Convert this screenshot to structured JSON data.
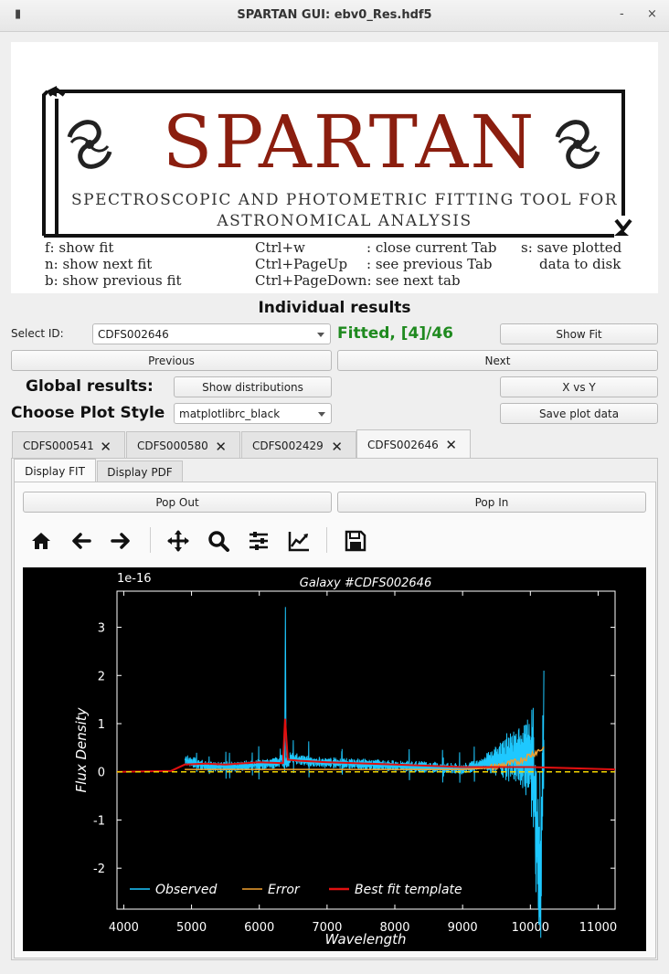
{
  "window": {
    "title": "SPARTAN GUI: ebv0_Res.hdf5",
    "minimize": "-",
    "close": "×",
    "menu": "▮"
  },
  "logo": {
    "title": "SPARTAN",
    "subtitle_line1": "SPECTROSCOPIC AND PHOTOMETRIC FITTING TOOL FOR",
    "subtitle_line2": "ASTRONOMICAL ANALYSIS"
  },
  "shortcuts": {
    "col1": [
      "f:  show fit",
      "n: show next fit",
      "b: show previous fit"
    ],
    "col2_keys": [
      "Ctrl+w",
      "Ctrl+PageUp",
      "Ctrl+PageDown:"
    ],
    "col2_desc": [
      ": close current Tab",
      ": see previous Tab",
      "see next tab"
    ],
    "col3": [
      "s: save plotted",
      "data to disk"
    ]
  },
  "individual": {
    "heading": "Individual results",
    "select_label": "Select ID:",
    "select_value": "CDFS002646",
    "status": "Fitted, [4]/46",
    "show_fit": "Show Fit",
    "previous": "Previous",
    "next": "Next"
  },
  "global": {
    "heading": "Global results:",
    "show_distributions": "Show distributions",
    "x_vs_y": "X vs Y",
    "plot_style_label": "Choose Plot Style",
    "plot_style_value": "matplotlibrc_black",
    "save_plot_data": "Save plot data"
  },
  "tabs": [
    "CDFS000541",
    "CDFS000580",
    "CDFS002429",
    "CDFS002646"
  ],
  "subtabs": [
    "Display FIT",
    "Display PDF"
  ],
  "pop_out": "Pop Out",
  "pop_in": "Pop In",
  "toolbar": [
    "home-icon",
    "back-icon",
    "forward-icon",
    "pan-icon",
    "zoom-icon",
    "configure-icon",
    "edit-curves-icon",
    "save-icon"
  ],
  "colors": {
    "accent_green": "#1f8a1f",
    "logo_red": "#8b1e0f",
    "observed": "#1ec8ff",
    "error": "#f0a030",
    "bestfit": "#e01010"
  },
  "chart_data": {
    "type": "line",
    "title": "Galaxy #CDFS002646",
    "xlabel": "Wavelength",
    "ylabel": "Flux Density",
    "scale_label": "1e-16",
    "xlim": [
      3900,
      11250
    ],
    "ylim": [
      -2.85,
      3.75
    ],
    "xticks": [
      4000,
      5000,
      6000,
      7000,
      8000,
      9000,
      10000,
      11000
    ],
    "yticks": [
      -2,
      -1,
      0,
      1,
      2,
      3
    ],
    "legend": [
      "Observed",
      "Error",
      "Best fit template"
    ],
    "legend_position": "lower-center",
    "series": [
      {
        "name": "Observed",
        "x": [
          4900,
          5200,
          5600,
          6000,
          6300,
          6380,
          6420,
          6800,
          7200,
          7600,
          8000,
          8500,
          9000,
          9500,
          9800,
          10000,
          10100,
          10150,
          10200
        ],
        "y": [
          0.25,
          0.12,
          0.1,
          0.15,
          0.2,
          3.42,
          0.3,
          0.2,
          0.18,
          0.15,
          0.12,
          0.1,
          0.05,
          0.25,
          0.6,
          1.0,
          -1.5,
          -2.55,
          2.1
        ]
      },
      {
        "name": "Error",
        "x": [
          4900,
          6000,
          7000,
          8000,
          9000,
          9400,
          9800,
          10000,
          10200
        ],
        "y": [
          0.05,
          0.05,
          0.05,
          0.05,
          0.05,
          0.08,
          0.2,
          0.35,
          0.5
        ]
      },
      {
        "name": "Best fit template",
        "x": [
          3900,
          4700,
          4900,
          5200,
          5500,
          6000,
          6350,
          6380,
          6420,
          6600,
          7000,
          8000,
          9000,
          10000,
          11250
        ],
        "y": [
          0.0,
          0.02,
          0.15,
          0.17,
          0.15,
          0.2,
          0.18,
          1.1,
          0.25,
          0.23,
          0.2,
          0.15,
          0.1,
          0.1,
          0.05
        ]
      },
      {
        "name": "Zero line",
        "x": [
          3900,
          11250
        ],
        "y": [
          0,
          0
        ]
      }
    ]
  }
}
